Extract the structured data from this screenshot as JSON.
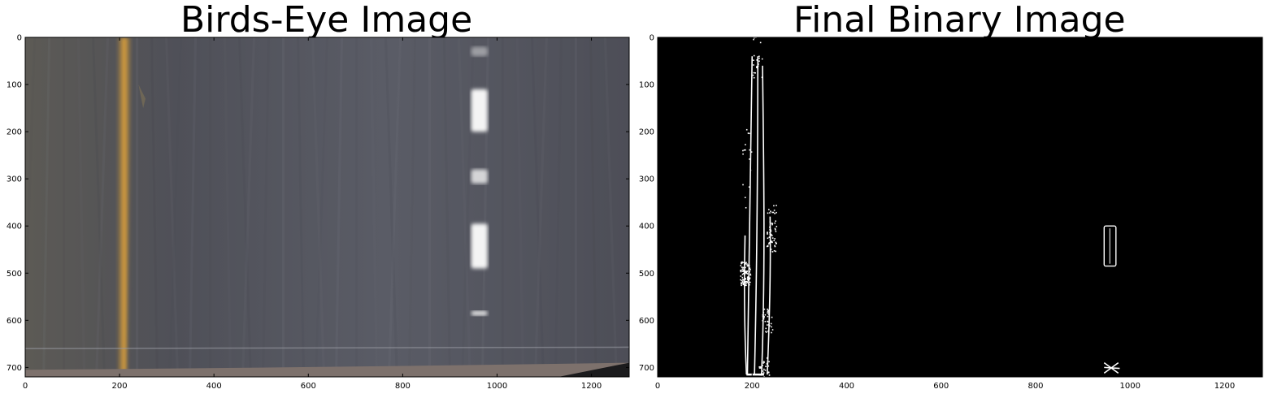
{
  "panels": [
    {
      "title": "Birds-Eye Image",
      "kind": "road",
      "x_ticks": [
        "0",
        "200",
        "400",
        "600",
        "800",
        "1000",
        "1200"
      ],
      "y_ticks": [
        "0",
        "100",
        "200",
        "300",
        "400",
        "500",
        "600",
        "700"
      ],
      "xlim": [
        0,
        1280
      ],
      "ylim": [
        720,
        0
      ]
    },
    {
      "title": "Final Binary Image",
      "kind": "binary",
      "x_ticks": [
        "0",
        "200",
        "400",
        "600",
        "800",
        "1000",
        "1200"
      ],
      "y_ticks": [
        "0",
        "100",
        "200",
        "300",
        "400",
        "500",
        "600",
        "700"
      ],
      "xlim": [
        0,
        1280
      ],
      "ylim": [
        720,
        0
      ]
    }
  ],
  "colors": {
    "road": "#55565d",
    "yellow_lane": "#e6a63a",
    "white_lane": "#f4f4f4",
    "binary_bg": "#000000",
    "binary_fg": "#ffffff"
  }
}
